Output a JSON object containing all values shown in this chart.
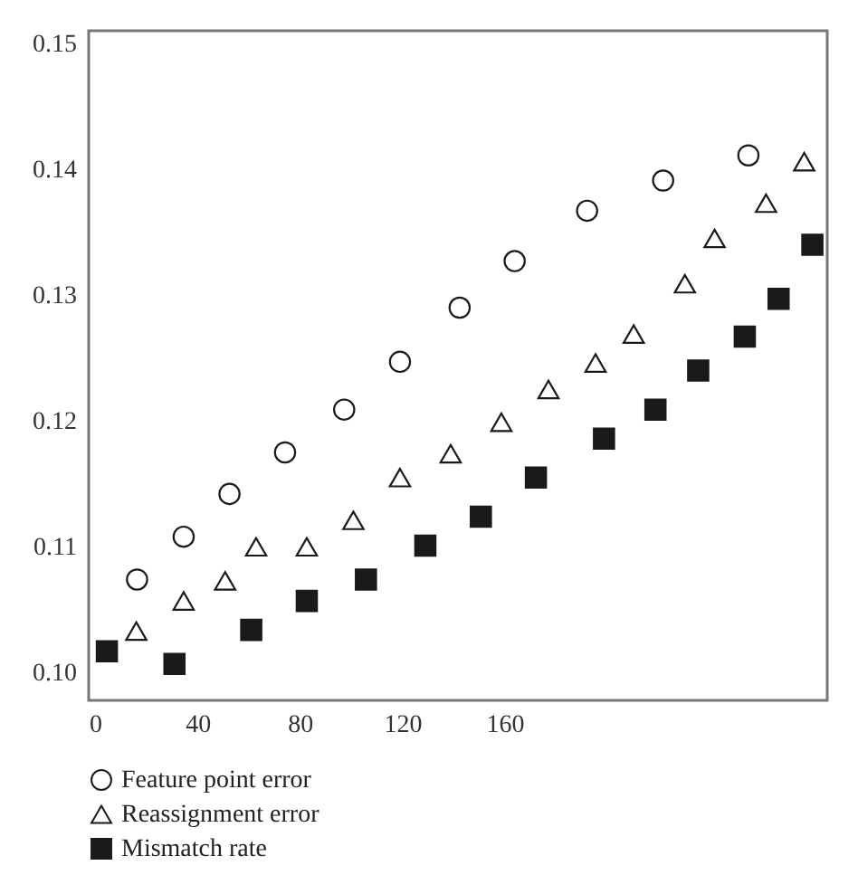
{
  "chart_data": {
    "type": "scatter",
    "xlim": [
      -2.5,
      286
    ],
    "xticks": [
      0,
      40,
      80,
      120,
      160
    ],
    "ylim": [
      0.0978,
      0.151
    ],
    "yticks": [
      {
        "value": 0.1,
        "label": "0.10"
      },
      0.11,
      0.12,
      0.13,
      0.14,
      0.15
    ],
    "grid": false,
    "legend": "bottom",
    "series": [
      {
        "name": "Feature point error",
        "color": "#1a1a1a",
        "marker": "circle",
        "x": [
          16.4,
          34.6,
          52.5,
          74.2,
          97.3,
          119.1,
          142.4,
          163.9,
          192.2,
          221.9,
          255.2
        ],
        "values": [
          0.1074,
          0.1108,
          0.1142,
          0.1175,
          0.1209,
          0.1247,
          0.129,
          0.1327,
          0.1367,
          0.1391,
          0.1411
        ]
      },
      {
        "name": "Reassignment error",
        "color": "#1a1a1a",
        "marker": "triangle",
        "x": [
          16.1,
          34.6,
          50.8,
          62.9,
          82.7,
          100.9,
          119.1,
          138.9,
          158.7,
          177.1,
          195.5,
          210.4,
          230.4,
          242,
          262.1,
          277
        ],
        "values": [
          0.1033,
          0.1057,
          0.1073,
          0.11,
          0.11,
          0.1121,
          0.1155,
          0.1174,
          0.1199,
          0.1225,
          0.1246,
          0.1269,
          0.1309,
          0.1345,
          0.1373,
          0.1406
        ]
      },
      {
        "name": "Mismatch rate",
        "color": "#1a1a1a",
        "marker": "square",
        "x": [
          4.6,
          31,
          61,
          82.7,
          105.8,
          129,
          150.7,
          172.2,
          198.8,
          218.9,
          235.6,
          253.8,
          267,
          280.2
        ],
        "values": [
          0.1017,
          0.1007,
          0.1034,
          0.1057,
          0.1074,
          0.1101,
          0.1124,
          0.1155,
          0.1186,
          0.1209,
          0.124,
          0.1267,
          0.1297,
          0.134
        ]
      }
    ]
  }
}
